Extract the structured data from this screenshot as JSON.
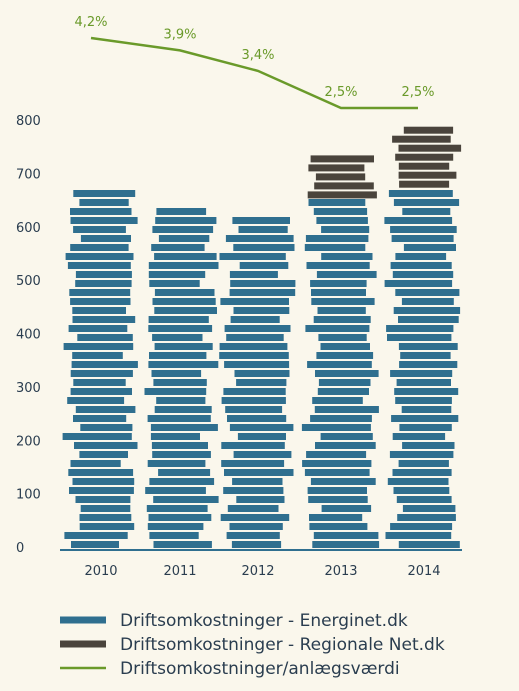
{
  "chart_data": {
    "type": "bar",
    "categories": [
      "2010",
      "2011",
      "2012",
      "2013",
      "2014"
    ],
    "series": [
      {
        "name": "Driftsomkostninger - Energinet.dk",
        "values": [
          675,
          648,
          622,
          655,
          675
        ],
        "color": "#2f6f8f"
      },
      {
        "name": "Driftsomkostninger - Regionale Net.dk",
        "values": [
          0,
          0,
          0,
          90,
          122
        ],
        "color": "#4a443c"
      }
    ],
    "line_series": {
      "name": "Driftsomkostninger/anlægsværdi",
      "values": [
        4.2,
        3.9,
        3.4,
        2.5,
        2.5
      ],
      "labels": [
        "4,2%",
        "3,9%",
        "3,4%",
        "2,5%",
        "2,5%"
      ],
      "color": "#6a9a2a"
    },
    "y_ticks": [
      "0",
      "100",
      "200",
      "300",
      "400",
      "500",
      "600",
      "700",
      "800"
    ],
    "ylim": [
      0,
      800
    ],
    "legend_placement": "bottom"
  }
}
